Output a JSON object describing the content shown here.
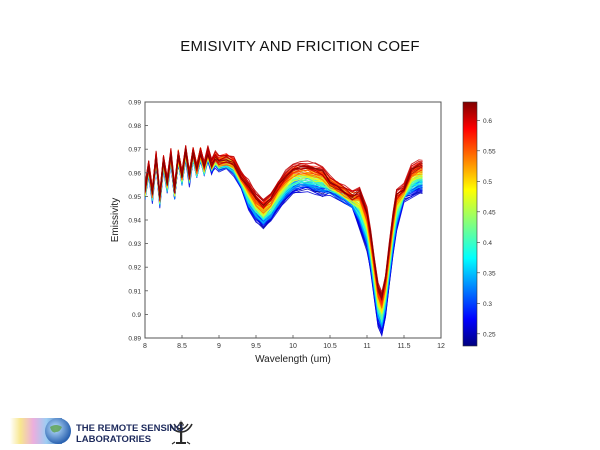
{
  "slide": {
    "title": "EMISIVITY  AND FRICITION COEF"
  },
  "logo": {
    "line1": "THE REMOTE SENSING",
    "line2": "LABORATORIES",
    "emblem_icon": "menorah-emblem-icon"
  },
  "chart_data": {
    "type": "line",
    "xlabel": "Wavelength (um)",
    "ylabel": "Emissivity",
    "xlim": [
      8,
      12
    ],
    "ylim": [
      0.89,
      0.99
    ],
    "x_ticks": [
      8,
      8.5,
      9,
      9.5,
      10,
      10.5,
      11,
      11.5,
      12
    ],
    "x_tick_labels": [
      "8",
      "8.5",
      "9",
      "9.5",
      "10",
      "10.5",
      "11",
      "11.5",
      "12"
    ],
    "y_ticks": [
      0.89,
      0.9,
      0.91,
      0.92,
      0.93,
      0.94,
      0.95,
      0.96,
      0.97,
      0.98,
      0.99
    ],
    "y_tick_labels": [
      "0.89",
      "0.9",
      "0.91",
      "0.92",
      "0.93",
      "0.94",
      "0.95",
      "0.96",
      "0.97",
      "0.98",
      "0.99"
    ],
    "grid": false,
    "colorbar": {
      "range": [
        0.23,
        0.63
      ],
      "ticks": [
        0.25,
        0.3,
        0.35,
        0.4,
        0.45,
        0.5,
        0.55,
        0.6
      ],
      "tick_labels": [
        "0.25",
        "0.3",
        "0.35",
        "0.4",
        "0.45",
        "0.5",
        "0.55",
        "0.6"
      ],
      "colormap": "jet"
    },
    "base_curve": {
      "x": [
        8.0,
        8.05,
        8.1,
        8.15,
        8.2,
        8.25,
        8.3,
        8.35,
        8.4,
        8.45,
        8.5,
        8.55,
        8.6,
        8.65,
        8.7,
        8.75,
        8.8,
        8.85,
        8.9,
        8.95,
        9.0,
        9.1,
        9.2,
        9.3,
        9.4,
        9.5,
        9.6,
        9.7,
        9.8,
        9.9,
        10.0,
        10.1,
        10.2,
        10.3,
        10.4,
        10.5,
        10.6,
        10.7,
        10.8,
        10.9,
        11.0,
        11.05,
        11.1,
        11.15,
        11.2,
        11.25,
        11.3,
        11.35,
        11.4,
        11.5,
        11.6,
        11.7,
        11.75
      ],
      "y": [
        0.952,
        0.962,
        0.951,
        0.966,
        0.949,
        0.965,
        0.955,
        0.967,
        0.952,
        0.967,
        0.958,
        0.969,
        0.958,
        0.968,
        0.961,
        0.968,
        0.962,
        0.968,
        0.963,
        0.966,
        0.964,
        0.965,
        0.963,
        0.957,
        0.951,
        0.946,
        0.943,
        0.946,
        0.951,
        0.955,
        0.958,
        0.959,
        0.959,
        0.958,
        0.957,
        0.955,
        0.953,
        0.951,
        0.949,
        0.946,
        0.937,
        0.928,
        0.916,
        0.905,
        0.901,
        0.909,
        0.922,
        0.935,
        0.945,
        0.952,
        0.957,
        0.959,
        0.959
      ]
    },
    "series_count": 70,
    "coef_range": [
      0.23,
      0.63
    ]
  }
}
